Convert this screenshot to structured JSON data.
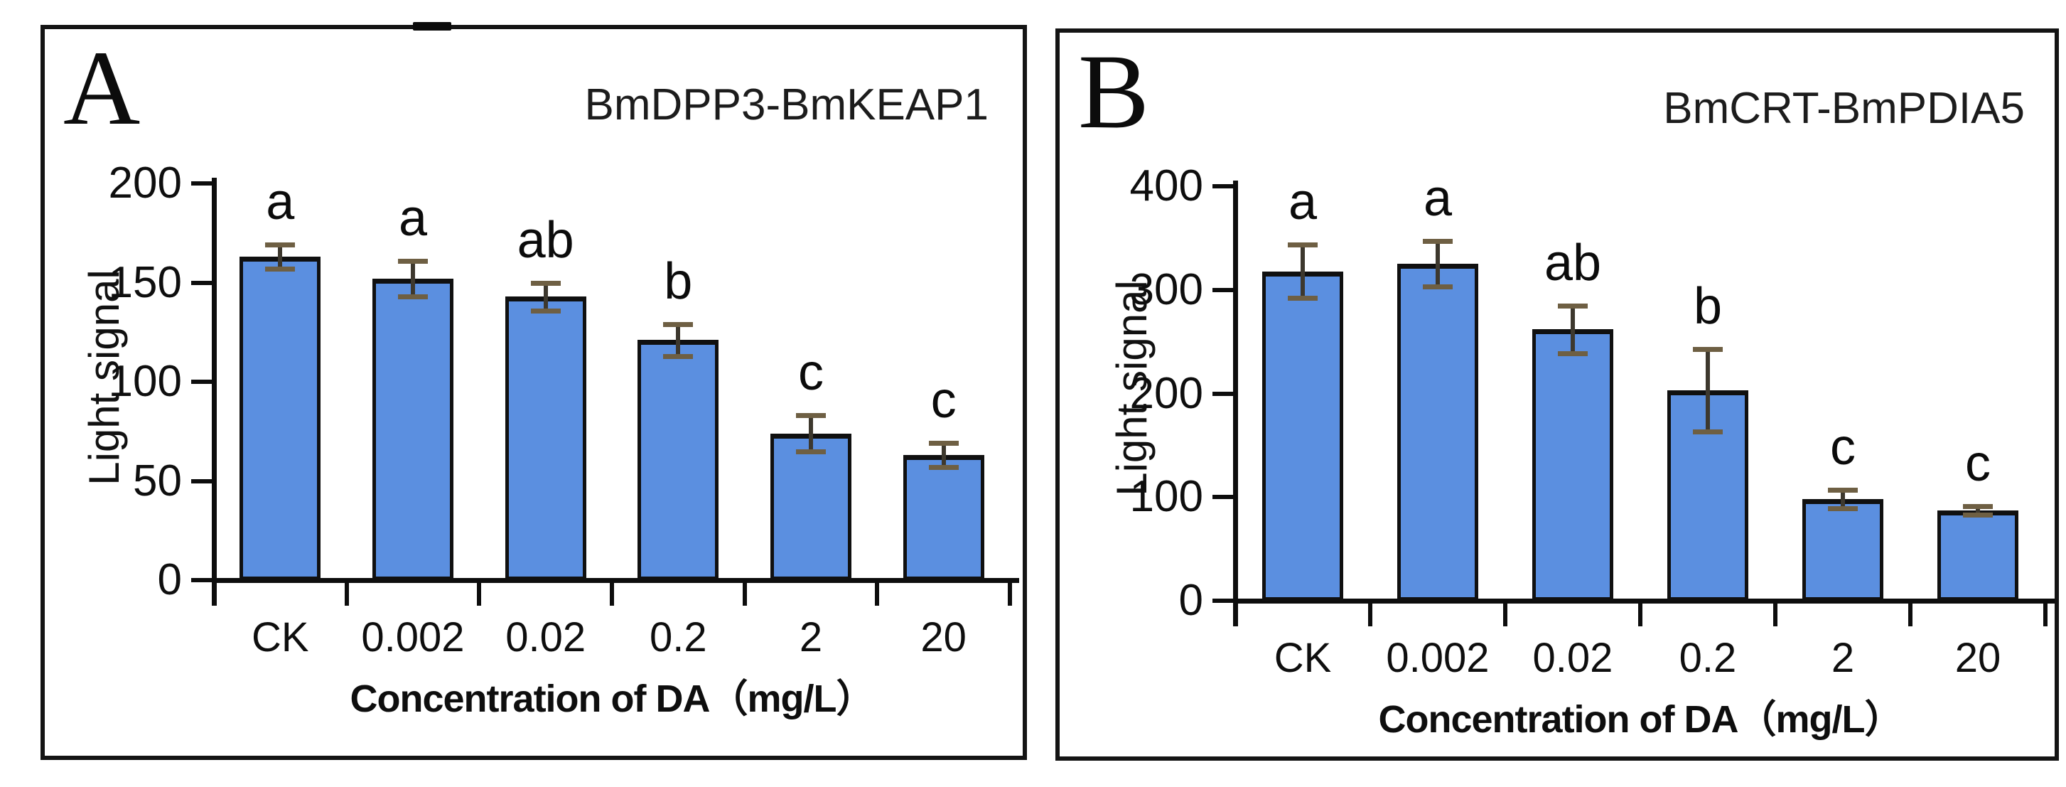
{
  "figure": {
    "background": "#ffffff",
    "panel_border_color": "#141414"
  },
  "chart_data": [
    {
      "type": "bar",
      "panel_letter": "A",
      "title": "BmDPP3-BmKEAP1",
      "ylabel": "Light signal",
      "xlabel": "Concentration of DA（mg/L）",
      "categories": [
        "CK",
        "0.002",
        "0.02",
        "0.2",
        "2",
        "20"
      ],
      "values": [
        163,
        152,
        143,
        121,
        74,
        63
      ],
      "errors": [
        6,
        9,
        7,
        8,
        9,
        6
      ],
      "sig_letters": [
        "a",
        "a",
        "ab",
        "b",
        "c",
        "c"
      ],
      "ylim": [
        0,
        200
      ],
      "yticks": [
        0,
        50,
        100,
        150,
        200
      ],
      "grid": false,
      "legend": false,
      "bar_color": "#5B8FE0",
      "bar_border_color": "#101010",
      "error_line_color": "#3d382e",
      "error_cap_color": "#6e5f43",
      "text_color": "#0e0e0e"
    },
    {
      "type": "bar",
      "panel_letter": "B",
      "title": "BmCRT-BmPDIA5",
      "ylabel": "Light signal",
      "xlabel": "Concentration of DA（mg/L）",
      "categories": [
        "CK",
        "0.002",
        "0.02",
        "0.2",
        "2",
        "20"
      ],
      "values": [
        318,
        325,
        262,
        203,
        98,
        87
      ],
      "errors": [
        26,
        22,
        23,
        40,
        9,
        4
      ],
      "sig_letters": [
        "a",
        "a",
        "ab",
        "b",
        "c",
        "c"
      ],
      "ylim": [
        0,
        400
      ],
      "yticks": [
        0,
        100,
        200,
        300,
        400
      ],
      "grid": false,
      "legend": false,
      "bar_color": "#5B8FE0",
      "bar_border_color": "#101010",
      "error_line_color": "#3d382e",
      "error_cap_color": "#6e5f43",
      "text_color": "#0e0e0e"
    }
  ]
}
